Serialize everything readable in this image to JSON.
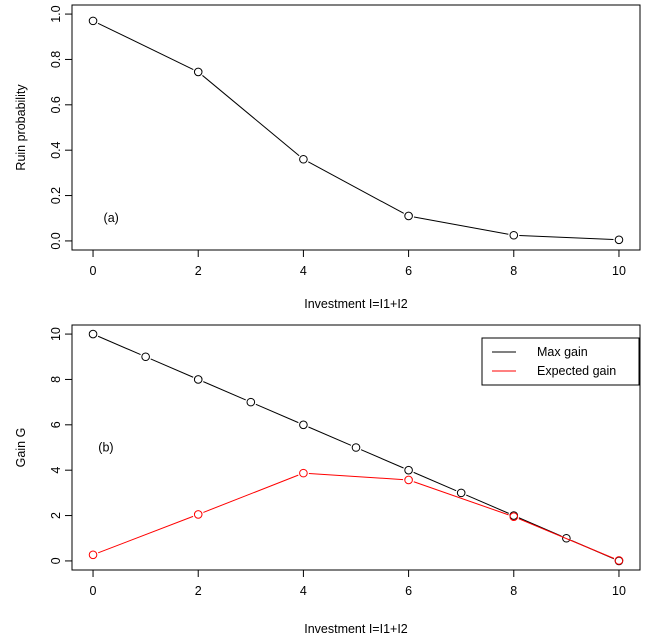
{
  "chart_data": [
    {
      "type": "line",
      "panel_label": "(a)",
      "xlabel": "Investment I=I1+I2",
      "ylabel": "Ruin probability",
      "xlim": [
        0,
        10
      ],
      "ylim": [
        0,
        1.0
      ],
      "xticks": [
        "0",
        "2",
        "4",
        "6",
        "8",
        "10"
      ],
      "yticks": [
        "0.0",
        "0.2",
        "0.4",
        "0.6",
        "0.8",
        "1.0"
      ],
      "grid": false,
      "series": [
        {
          "color": "#000000",
          "marker": "open-circle",
          "x": [
            0,
            2,
            4,
            6,
            8,
            10
          ],
          "y": [
            0.97,
            0.745,
            0.36,
            0.11,
            0.025,
            0.005
          ]
        }
      ]
    },
    {
      "type": "line",
      "panel_label": "(b)",
      "xlabel": "Investment I=I1+I2",
      "ylabel": "Gain G",
      "xlim": [
        0,
        10
      ],
      "ylim": [
        0,
        10
      ],
      "xticks": [
        "0",
        "2",
        "4",
        "6",
        "8",
        "10"
      ],
      "yticks": [
        "0",
        "2",
        "4",
        "6",
        "8",
        "10"
      ],
      "grid": false,
      "legend_position": "top-right",
      "series": [
        {
          "name": "Max gain",
          "color": "#000000",
          "marker": "open-circle",
          "x": [
            0,
            1,
            2,
            3,
            4,
            5,
            6,
            7,
            8,
            9,
            10
          ],
          "y": [
            10,
            9,
            8,
            7,
            6,
            5,
            4,
            3,
            2,
            1,
            0
          ]
        },
        {
          "name": "Expected gain",
          "color": "#ff0000",
          "marker": "open-circle",
          "x": [
            0,
            2,
            4,
            6,
            8,
            10
          ],
          "y": [
            0.27,
            2.05,
            3.87,
            3.57,
            1.95,
            0.02
          ]
        }
      ]
    }
  ]
}
